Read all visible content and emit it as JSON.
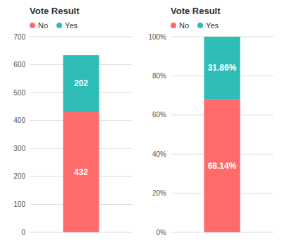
{
  "chart_data": [
    {
      "type": "bar",
      "title": "Vote Result",
      "stacked": true,
      "grid": true,
      "legend": "top",
      "tick_labels": "y",
      "data_labels": true,
      "categories": [
        null
      ],
      "series": [
        {
          "name": "No",
          "color": "#FF6B6B",
          "values": [
            432
          ]
        },
        {
          "name": "Yes",
          "color": "#2DBDB6",
          "values": [
            202
          ]
        }
      ],
      "ylim": [
        0,
        700
      ],
      "yticks": [
        0,
        100,
        200,
        300,
        400,
        500,
        600,
        700
      ]
    },
    {
      "type": "bar",
      "title": "Vote Result",
      "stacked": true,
      "grid": true,
      "legend": "top",
      "tick_labels": "y",
      "data_labels": true,
      "categories": [
        null
      ],
      "series": [
        {
          "name": "No",
          "color": "#FF6B6B",
          "values": [
            68.14
          ],
          "value_labels": [
            "68.14%"
          ]
        },
        {
          "name": "Yes",
          "color": "#2DBDB6",
          "values": [
            31.86
          ],
          "value_labels": [
            "31.86%"
          ]
        }
      ],
      "ylim": [
        0,
        100
      ],
      "yticks": [
        {
          "value": 0,
          "label": "0%"
        },
        {
          "value": 20,
          "label": "20%"
        },
        {
          "value": 40,
          "label": "40%"
        },
        {
          "value": 60,
          "label": "60%"
        },
        {
          "value": 80,
          "label": "80%"
        },
        {
          "value": 100,
          "label": "100%"
        }
      ]
    }
  ]
}
